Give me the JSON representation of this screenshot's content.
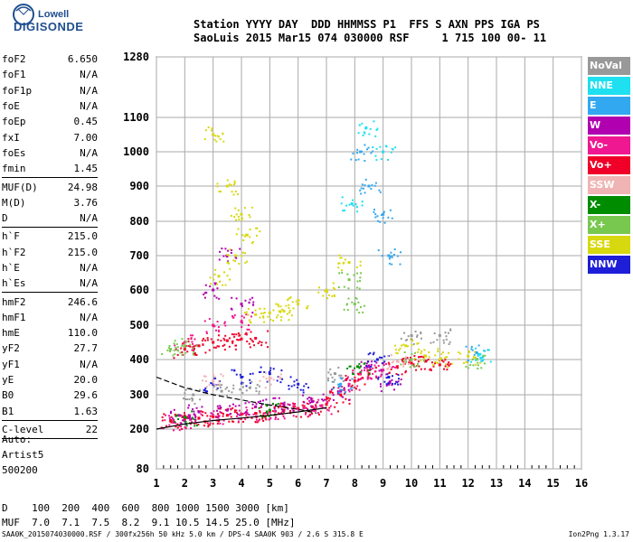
{
  "logo": {
    "line1": "Lowell",
    "line2": "DIGISONDE"
  },
  "header": {
    "line1": "Station YYYY DAY  DDD HHMMSS P1  FFS S AXN PPS IGA PS",
    "line2": "SaoLuis 2015 Mar15 074 030000 RSF     1 715 100 00- 11"
  },
  "params": [
    {
      "name": "foF2",
      "value": "6.650"
    },
    {
      "name": "foF1",
      "value": "N/A"
    },
    {
      "name": "foF1p",
      "value": "N/A"
    },
    {
      "name": "foE",
      "value": "N/A"
    },
    {
      "name": "foEp",
      "value": "0.45"
    },
    {
      "name": "fxI",
      "value": "7.00"
    },
    {
      "name": "foEs",
      "value": "N/A"
    },
    {
      "name": "fmin",
      "value": "1.45"
    },
    {
      "sep": true
    },
    {
      "name": "MUF(D)",
      "value": "24.98"
    },
    {
      "name": "M(D)",
      "value": "3.76"
    },
    {
      "name": "D",
      "value": "N/A"
    },
    {
      "sep": true
    },
    {
      "name": "h`F",
      "value": "215.0"
    },
    {
      "name": "h`F2",
      "value": "215.0"
    },
    {
      "name": "h`E",
      "value": "N/A"
    },
    {
      "name": "h`Es",
      "value": "N/A"
    },
    {
      "sep": true
    },
    {
      "name": "hmF2",
      "value": "246.6"
    },
    {
      "name": "hmF1",
      "value": "N/A"
    },
    {
      "name": "hmE",
      "value": "110.0"
    },
    {
      "name": "yF2",
      "value": "27.7"
    },
    {
      "name": "yF1",
      "value": "N/A"
    },
    {
      "name": "yE",
      "value": "20.0"
    },
    {
      "name": "B0",
      "value": "29.6"
    },
    {
      "name": "B1",
      "value": "1.63"
    },
    {
      "sep": true
    },
    {
      "name": "C-level",
      "value": "22"
    },
    {
      "sep": true
    }
  ],
  "auto": {
    "line1": "Auto:",
    "line2": "Artist5",
    "line3": "500200"
  },
  "footer": {
    "d_line": "D    100  200  400  600  800 1000 1500 3000 [km]",
    "muf_line": "MUF  7.0  7.1  7.5  8.2  9.1 10.5 14.5 25.0 [MHz]"
  },
  "ident": "SAA0K_2015074030000.RSF / 300fx256h 50 kHz 5.0 km / DPS-4 SAA0K 903 / 2.6 S 315.8 E",
  "version": "Ion2Png 1.3.17",
  "legend": [
    {
      "label": "NoVal",
      "color": "#999999"
    },
    {
      "label": "NNE",
      "color": "#1ee0f0"
    },
    {
      "label": "E",
      "color": "#32a8f0"
    },
    {
      "label": "W",
      "color": "#b000b0"
    },
    {
      "label": "Vo-",
      "color": "#f01890"
    },
    {
      "label": "Vo+",
      "color": "#f00028"
    },
    {
      "label": "SSW",
      "color": "#f0b4b4"
    },
    {
      "label": "X-",
      "color": "#008c00"
    },
    {
      "label": "X+",
      "color": "#78c850"
    },
    {
      "label": "SSE",
      "color": "#d8d810"
    },
    {
      "label": "NNW",
      "color": "#1e1ed8"
    }
  ],
  "chart_data": {
    "type": "scatter",
    "title": "",
    "xlabel": "",
    "ylabel": "",
    "xlim": [
      1,
      16
    ],
    "ylim": [
      80,
      1280
    ],
    "x_ticks": [
      1,
      2,
      3,
      4,
      5,
      6,
      7,
      8,
      9,
      10,
      11,
      12,
      13,
      14,
      15,
      16
    ],
    "y_ticks": [
      80,
      200,
      300,
      400,
      500,
      600,
      700,
      800,
      900,
      1000,
      1100,
      1280
    ],
    "grid": true,
    "legend_position": "right",
    "series": [
      {
        "name": "Vo+",
        "color": "#f00028",
        "points": [
          [
            1.5,
            225
          ],
          [
            2,
            230
          ],
          [
            2.5,
            232
          ],
          [
            3,
            236
          ],
          [
            3.5,
            240
          ],
          [
            4,
            243
          ],
          [
            4.5,
            246
          ],
          [
            5,
            250
          ],
          [
            5.5,
            255
          ],
          [
            6,
            260
          ],
          [
            6.5,
            265
          ],
          [
            7,
            272
          ],
          [
            7.5,
            300
          ],
          [
            8,
            340
          ],
          [
            8.5,
            360
          ],
          [
            2,
            430
          ],
          [
            2.5,
            440
          ],
          [
            3,
            450
          ],
          [
            3.5,
            455
          ],
          [
            4,
            460
          ],
          [
            4.5,
            462
          ],
          [
            9.5,
            380
          ],
          [
            10,
            390
          ],
          [
            10.5,
            395
          ],
          [
            11,
            385
          ]
        ]
      },
      {
        "name": "Vo-",
        "color": "#f01890",
        "points": [
          [
            1.6,
            220
          ],
          [
            2.2,
            228
          ],
          [
            3.2,
            238
          ],
          [
            4.2,
            245
          ],
          [
            5.2,
            252
          ],
          [
            6.2,
            262
          ],
          [
            6.8,
            268
          ],
          [
            7.8,
            330
          ],
          [
            8.2,
            360
          ],
          [
            9,
            370
          ],
          [
            3,
            500
          ],
          [
            4,
            510
          ],
          [
            2,
            450
          ]
        ]
      },
      {
        "name": "W",
        "color": "#b000b0",
        "points": [
          [
            1.8,
            240
          ],
          [
            2.5,
            250
          ],
          [
            3.5,
            255
          ],
          [
            4.5,
            265
          ],
          [
            5.5,
            270
          ],
          [
            6.5,
            280
          ],
          [
            7.5,
            310
          ],
          [
            8.5,
            380
          ],
          [
            9.2,
            330
          ],
          [
            3,
            600
          ],
          [
            3.5,
            700
          ],
          [
            4,
            560
          ]
        ]
      },
      {
        "name": "SSE",
        "color": "#d8d810",
        "points": [
          [
            3,
            1050
          ],
          [
            3.5,
            900
          ],
          [
            4,
            820
          ],
          [
            4.2,
            760
          ],
          [
            3.8,
            700
          ],
          [
            3.2,
            640
          ],
          [
            4.5,
            530
          ],
          [
            5,
            535
          ],
          [
            5.5,
            540
          ],
          [
            6,
            560
          ],
          [
            7,
            600
          ],
          [
            7.8,
            680
          ],
          [
            9.8,
            440
          ],
          [
            10.5,
            410
          ],
          [
            11,
            400
          ],
          [
            12,
            410
          ]
        ]
      },
      {
        "name": "X+",
        "color": "#78c850",
        "points": [
          [
            1.5,
            430
          ],
          [
            2,
            440
          ],
          [
            7.8,
            630
          ],
          [
            8,
            560
          ],
          [
            10,
            400
          ],
          [
            12.3,
            400
          ]
        ]
      },
      {
        "name": "E",
        "color": "#32a8f0",
        "points": [
          [
            8.2,
            1000
          ],
          [
            8.5,
            900
          ],
          [
            9,
            820
          ],
          [
            9.2,
            700
          ],
          [
            12.3,
            420
          ],
          [
            7.5,
            330
          ]
        ]
      },
      {
        "name": "NNE",
        "color": "#1ee0f0",
        "points": [
          [
            8.4,
            1070
          ],
          [
            9,
            1000
          ],
          [
            12.4,
            415
          ],
          [
            7.9,
            850
          ]
        ]
      },
      {
        "name": "NNW",
        "color": "#1e1ed8",
        "points": [
          [
            3,
            330
          ],
          [
            4,
            350
          ],
          [
            5,
            360
          ],
          [
            6,
            330
          ],
          [
            8.8,
            400
          ],
          [
            9.2,
            350
          ]
        ]
      },
      {
        "name": "NoVal",
        "color": "#999999",
        "points": [
          [
            2.3,
            300
          ],
          [
            3.3,
            310
          ],
          [
            4.3,
            320
          ],
          [
            7.3,
            360
          ],
          [
            10,
            470
          ],
          [
            11,
            470
          ]
        ]
      },
      {
        "name": "X-",
        "color": "#008c00",
        "points": [
          [
            2,
            235
          ],
          [
            5,
            255
          ],
          [
            8.1,
            380
          ]
        ]
      },
      {
        "name": "SSW",
        "color": "#f0b4b4",
        "points": [
          [
            3,
            340
          ],
          [
            5,
            345
          ],
          [
            9.5,
            395
          ]
        ]
      }
    ],
    "profile_curve": [
      [
        1,
        350
      ],
      [
        2,
        320
      ],
      [
        3,
        300
      ],
      [
        4,
        285
      ],
      [
        5,
        270
      ],
      [
        6,
        258
      ],
      [
        6.65,
        246.6
      ]
    ],
    "trace_curve": [
      [
        1,
        200
      ],
      [
        2,
        215
      ],
      [
        3,
        225
      ],
      [
        4,
        232
      ],
      [
        5,
        240
      ],
      [
        6,
        250
      ],
      [
        7,
        262
      ]
    ]
  }
}
